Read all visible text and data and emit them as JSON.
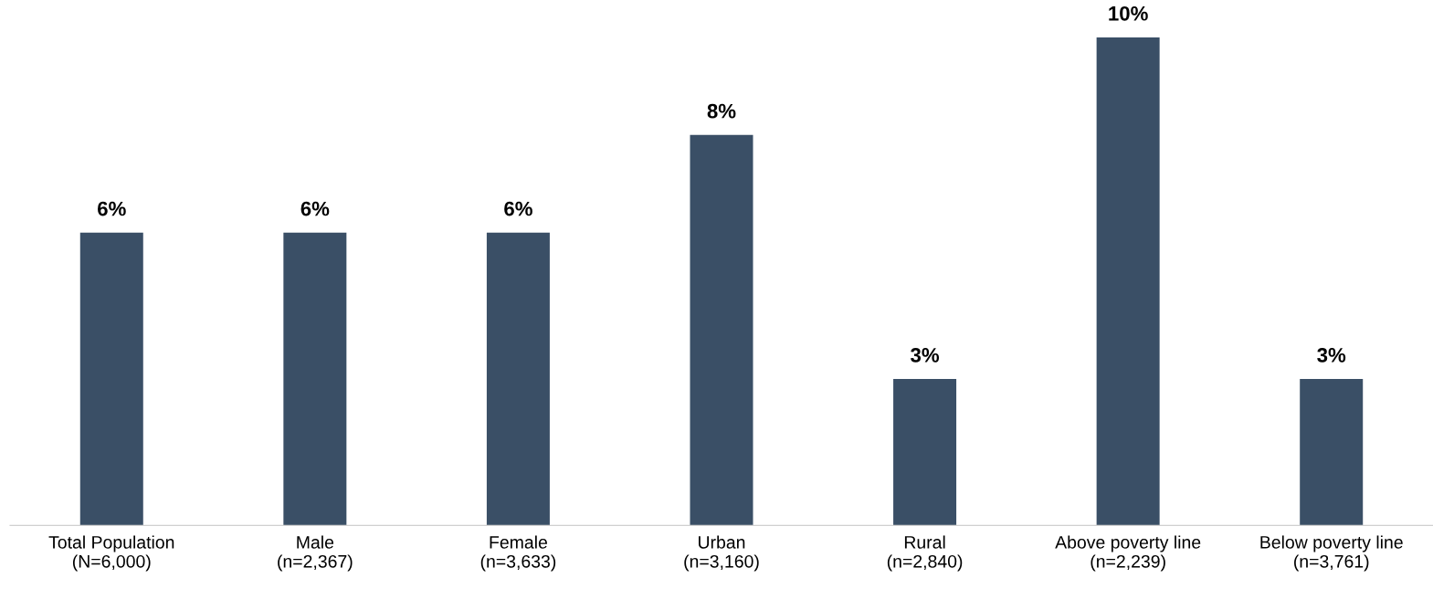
{
  "chart_data": {
    "type": "bar",
    "categories": [
      "Total Population\n(N=6,000)",
      "Male\n(n=2,367)",
      "Female\n(n=3,633)",
      "Urban\n(n=3,160)",
      "Rural\n(n=2,840)",
      "Above poverty line\n(n=2,239)",
      "Below poverty line\n(n=3,761)"
    ],
    "values": [
      6,
      6,
      6,
      8,
      3,
      10,
      3
    ],
    "value_labels": [
      "6%",
      "6%",
      "6%",
      "8%",
      "3%",
      "10%",
      "3%"
    ],
    "color": "#3a4f66",
    "grid": false,
    "legend": false
  }
}
